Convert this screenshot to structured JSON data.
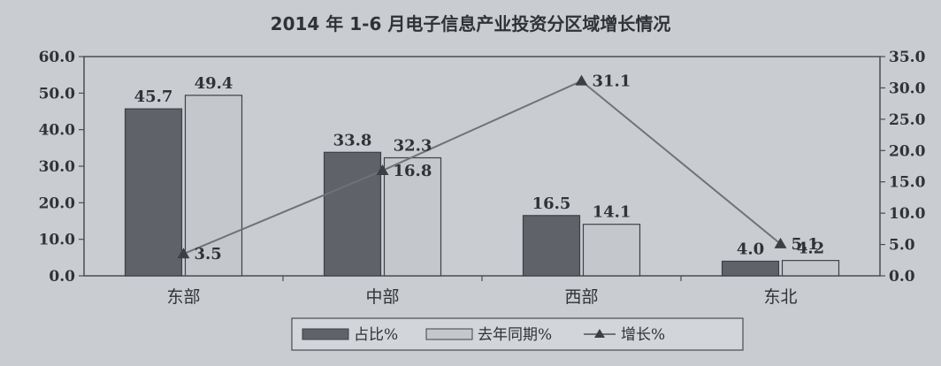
{
  "chart_data": {
    "type": "bar",
    "title": "2014 年 1-6 月电子信息产业投资分区域增长情况",
    "categories": [
      "东部",
      "中部",
      "西部",
      "东北"
    ],
    "series": [
      {
        "name": "占比%",
        "kind": "bar",
        "axis": "left",
        "color": "#5f6268",
        "values": [
          45.7,
          33.8,
          16.5,
          4.0
        ],
        "labels": [
          "45.7",
          "33.8",
          "16.5",
          "4.0"
        ]
      },
      {
        "name": "去年同期%",
        "kind": "bar",
        "axis": "left",
        "color": "#c4c7cc",
        "values": [
          49.4,
          32.3,
          14.1,
          4.2
        ],
        "labels": [
          "49.4",
          "32.3",
          "14.1",
          "4.2"
        ]
      },
      {
        "name": "增长%",
        "kind": "line",
        "axis": "right",
        "color": "#6f7277",
        "values": [
          3.5,
          16.8,
          31.1,
          5.1
        ],
        "labels": [
          "3.5",
          "16.8",
          "31.1",
          "5.1"
        ]
      }
    ],
    "y_left": {
      "ylim": [
        0,
        60
      ],
      "ticks": [
        "0.0",
        "10.0",
        "20.0",
        "30.0",
        "40.0",
        "50.0",
        "60.0"
      ]
    },
    "y_right": {
      "ylim": [
        0,
        35
      ],
      "ticks": [
        "0.0",
        "5.0",
        "10.0",
        "15.0",
        "20.0",
        "25.0",
        "30.0",
        "35.0"
      ]
    },
    "grid": false,
    "legend_position": "bottom-center",
    "colors": {
      "background": "#c9ccd0",
      "plot_border": "#4a4d52",
      "text": "#2f3236"
    }
  }
}
